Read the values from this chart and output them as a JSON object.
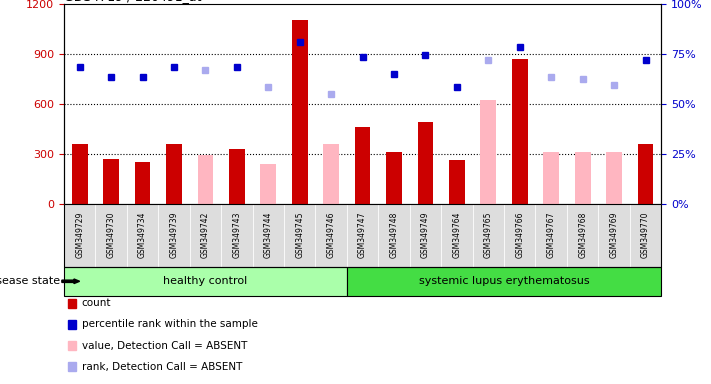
{
  "samples": [
    "GSM349729",
    "GSM349730",
    "GSM349734",
    "GSM349739",
    "GSM349742",
    "GSM349743",
    "GSM349744",
    "GSM349745",
    "GSM349746",
    "GSM349747",
    "GSM349748",
    "GSM349749",
    "GSM349764",
    "GSM349765",
    "GSM349766",
    "GSM349767",
    "GSM349768",
    "GSM349769",
    "GSM349770"
  ],
  "n_healthy": 9,
  "n_sle": 10,
  "count": [
    360,
    270,
    250,
    360,
    null,
    330,
    null,
    1100,
    null,
    460,
    310,
    490,
    260,
    null,
    870,
    null,
    null,
    null,
    360
  ],
  "value_absent": [
    null,
    null,
    null,
    null,
    290,
    null,
    240,
    null,
    360,
    null,
    null,
    null,
    null,
    620,
    null,
    310,
    310,
    310,
    null
  ],
  "percentile_rank": [
    820,
    760,
    760,
    820,
    null,
    820,
    null,
    970,
    null,
    880,
    780,
    890,
    700,
    null,
    940,
    null,
    null,
    null,
    860
  ],
  "rank_absent": [
    null,
    null,
    null,
    null,
    800,
    null,
    700,
    null,
    660,
    null,
    null,
    null,
    null,
    860,
    null,
    760,
    750,
    710,
    null
  ],
  "ylim_left": [
    0,
    1200
  ],
  "ylim_right": [
    0,
    100
  ],
  "yticks_left": [
    0,
    300,
    600,
    900,
    1200
  ],
  "yticks_right": [
    0,
    25,
    50,
    75,
    100
  ],
  "count_color": "#CC0000",
  "absent_value_color": "#FFB6C1",
  "percentile_color": "#0000CC",
  "rank_absent_color": "#AAAAEE",
  "bg_color": "#FFFFFF",
  "ylabel_left_color": "#CC0000",
  "ylabel_right_color": "#0000CC",
  "hc_color": "#AAFFAA",
  "sle_color": "#44DD44",
  "tick_bg_color": "#DDDDDD",
  "group_border_color": "#000000",
  "bar_width": 0.5,
  "legend": [
    {
      "label": "count",
      "color": "#CC0000"
    },
    {
      "label": "percentile rank within the sample",
      "color": "#0000CC"
    },
    {
      "label": "value, Detection Call = ABSENT",
      "color": "#FFB6C1"
    },
    {
      "label": "rank, Detection Call = ABSENT",
      "color": "#AAAAEE"
    }
  ]
}
